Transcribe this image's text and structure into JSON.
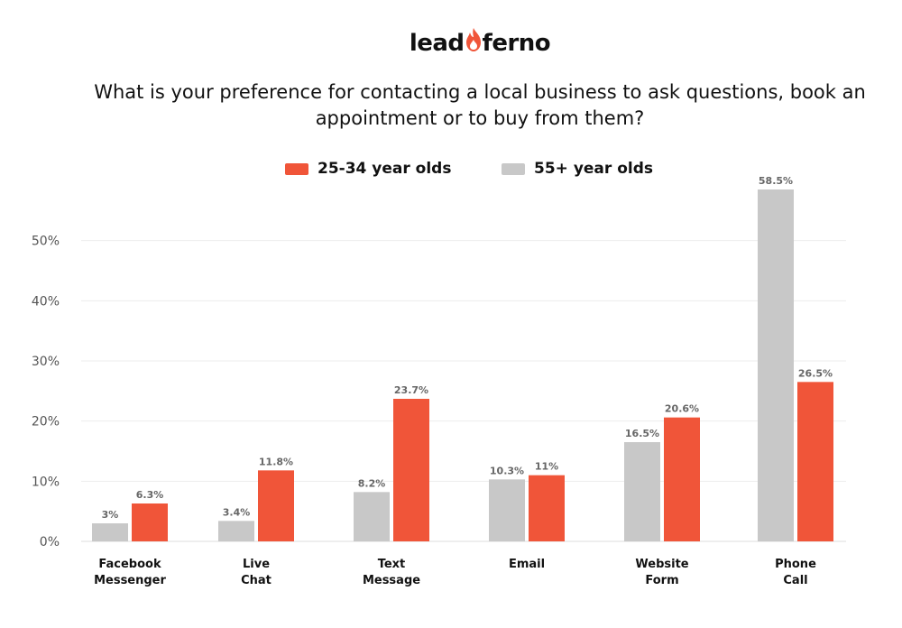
{
  "logo": {
    "text_left": "lead",
    "text_right": "ferno",
    "icon": "flame-icon",
    "color": "#f05539"
  },
  "chart_data": {
    "type": "bar",
    "title": "What is your preference for contacting a local business to ask questions, book an appointment or to buy from them?",
    "categories": [
      [
        "Facebook",
        "Messenger"
      ],
      [
        "Live",
        "Chat"
      ],
      [
        "Text",
        "Message"
      ],
      [
        "Email"
      ],
      [
        "Website",
        "Form"
      ],
      [
        "Phone",
        "Call"
      ]
    ],
    "series": [
      {
        "name": "55+ year olds",
        "color": "#c8c8c8",
        "values": [
          3,
          3.4,
          8.2,
          10.3,
          16.5,
          58.5
        ],
        "labels": [
          "3%",
          "3.4%",
          "8.2%",
          "10.3%",
          "16.5%",
          "58.5%"
        ]
      },
      {
        "name": "25-34 year olds",
        "color": "#f05539",
        "values": [
          6.3,
          11.8,
          23.7,
          11,
          20.6,
          26.5
        ],
        "labels": [
          "6.3%",
          "11.8%",
          "23.7%",
          "11%",
          "20.6%",
          "26.5%"
        ]
      }
    ],
    "legend_order": [
      "25-34 year olds",
      "55+ year olds"
    ],
    "ylim": [
      0,
      58.5
    ],
    "yticks": [
      0,
      10,
      20,
      30,
      40,
      50
    ],
    "ytick_labels": [
      "0%",
      "10%",
      "20%",
      "30%",
      "40%",
      "50%"
    ],
    "grid": true,
    "legend_position": "top-center"
  }
}
